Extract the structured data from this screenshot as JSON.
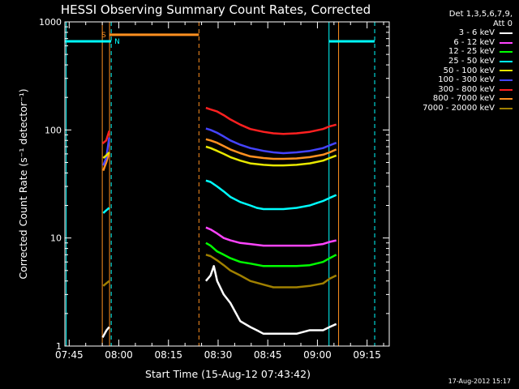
{
  "chart_data": {
    "type": "line",
    "title": "HESSI Observing Summary Count Rates, Corrected",
    "xlabel": "Start Time (15-Aug-12 07:43:42)",
    "ylabel": "Corrected Count Rate (s⁻¹ detector⁻¹)",
    "x_unit": "minutes after 07:43:42",
    "xlim": [
      0,
      98
    ],
    "ylim": [
      1,
      1000
    ],
    "yscale": "log",
    "x_ticks": [
      {
        "t": 1.3,
        "label": "07:45"
      },
      {
        "t": 16.3,
        "label": "08:00"
      },
      {
        "t": 31.3,
        "label": "08:15"
      },
      {
        "t": 46.3,
        "label": "08:30"
      },
      {
        "t": 61.3,
        "label": "08:45"
      },
      {
        "t": 76.3,
        "label": "09:00"
      },
      {
        "t": 91.3,
        "label": "09:15"
      }
    ],
    "y_ticks": [
      {
        "v": 1,
        "label": "1"
      },
      {
        "v": 10,
        "label": "10"
      },
      {
        "v": 100,
        "label": "100"
      },
      {
        "v": 1000,
        "label": "1000"
      }
    ],
    "legend_header": [
      "Det 1,3,5,6,7,9,",
      "Att 0"
    ],
    "series": [
      {
        "name": "3 - 6 keV",
        "color": "#ffffff",
        "segments": [
          {
            "t": [
              11.4,
              12.6,
              13.4
            ],
            "v": [
              1.2,
              1.4,
              1.5
            ]
          },
          {
            "t": [
              42.6,
              44,
              45,
              46,
              48,
              50,
              53,
              56,
              58,
              60,
              63,
              66,
              70,
              74,
              76,
              78,
              80,
              82
            ],
            "v": [
              4,
              4.5,
              5.5,
              4,
              3,
              2.5,
              1.7,
              1.5,
              1.4,
              1.3,
              1.3,
              1.3,
              1.3,
              1.4,
              1.4,
              1.4,
              1.5,
              1.6
            ]
          }
        ]
      },
      {
        "name": "6 - 12 keV",
        "color": "#ff44ff",
        "segments": [
          {
            "t": [
              42.6,
              44,
              46,
              48,
              50,
              53,
              56,
              60,
              63,
              66,
              70,
              74,
              78,
              80,
              82
            ],
            "v": [
              12.5,
              12,
              11,
              10,
              9.5,
              9,
              8.8,
              8.5,
              8.5,
              8.5,
              8.5,
              8.5,
              8.8,
              9.2,
              9.5
            ]
          }
        ]
      },
      {
        "name": "12 - 25 keV",
        "color": "#00ff00",
        "segments": [
          {
            "t": [
              42.6,
              44,
              46,
              48,
              50,
              53,
              56,
              60,
              63,
              66,
              70,
              74,
              78,
              80,
              82
            ],
            "v": [
              9,
              8.5,
              7.5,
              7,
              6.5,
              6,
              5.8,
              5.5,
              5.5,
              5.5,
              5.5,
              5.6,
              6,
              6.5,
              7
            ]
          }
        ]
      },
      {
        "name": "25 - 50 keV",
        "color": "#00ffff",
        "segments": [
          {
            "t": [
              11.6,
              12.5,
              13.4
            ],
            "v": [
              17,
              18,
              19
            ]
          },
          {
            "t": [
              42.6,
              44,
              46,
              48,
              50,
              53,
              56,
              58,
              60,
              63,
              66,
              70,
              74,
              76,
              78,
              80,
              82
            ],
            "v": [
              34,
              33,
              30,
              27,
              24,
              21.5,
              20,
              19,
              18.5,
              18.5,
              18.5,
              19,
              20,
              21,
              22,
              23.5,
              25
            ]
          }
        ]
      },
      {
        "name": "50 - 100 keV",
        "color": "#e8e800",
        "segments": [
          {
            "t": [
              11.6,
              12.5,
              13.4
            ],
            "v": [
              55,
              58,
              62
            ]
          },
          {
            "t": [
              42.6,
              44,
              46,
              48,
              50,
              53,
              56,
              60,
              63,
              66,
              70,
              74,
              78,
              80,
              82
            ],
            "v": [
              70,
              68,
              64,
              60,
              56,
              52,
              49,
              47.5,
              47,
              47,
              47.5,
              49,
              52,
              55,
              58
            ]
          }
        ]
      },
      {
        "name": "100 - 300 keV",
        "color": "#4444ff",
        "segments": [
          {
            "t": [
              11.6,
              12.5,
              13.4
            ],
            "v": [
              47,
              55,
              85
            ]
          },
          {
            "t": [
              42.6,
              44,
              46,
              48,
              50,
              53,
              56,
              60,
              63,
              66,
              70,
              74,
              78,
              80,
              82
            ],
            "v": [
              103,
              100,
              94,
              87,
              80,
              73,
              68,
              64,
              62,
              61,
              62,
              64,
              68,
              72,
              76
            ]
          }
        ]
      },
      {
        "name": "300 - 800 keV",
        "color": "#ff2020",
        "segments": [
          {
            "t": [
              11.4,
              12.5,
              13.4
            ],
            "v": [
              75,
              80,
              98
            ]
          },
          {
            "t": [
              42.6,
              44,
              46,
              48,
              50,
              53,
              56,
              60,
              63,
              66,
              70,
              74,
              78,
              80,
              82
            ],
            "v": [
              160,
              155,
              148,
              137,
              125,
              112,
              102,
              96,
              93,
              92,
              93,
              96,
              102,
              108,
              112
            ]
          }
        ]
      },
      {
        "name": "800 - 7000 keV",
        "color": "#ff9020",
        "segments": [
          {
            "t": [
              11.6,
              12.5,
              13.4
            ],
            "v": [
              42,
              50,
              62
            ]
          },
          {
            "t": [
              42.6,
              44,
              46,
              48,
              50,
              53,
              56,
              60,
              63,
              66,
              70,
              74,
              78,
              80,
              82
            ],
            "v": [
              82,
              80,
              76,
              71,
              66,
              61,
              57,
              55,
              54,
              54,
              54.5,
              56,
              59,
              62,
              66
            ]
          }
        ]
      },
      {
        "name": "7000 - 20000 keV",
        "color": "#a08000",
        "segments": [
          {
            "t": [
              11.6,
              12.5,
              13.4
            ],
            "v": [
              3.6,
              3.8,
              4
            ]
          },
          {
            "t": [
              42.6,
              44,
              46,
              48,
              50,
              53,
              56,
              60,
              63,
              66,
              70,
              74,
              78,
              80,
              82
            ],
            "v": [
              7,
              6.8,
              6.2,
              5.6,
              5,
              4.5,
              4,
              3.7,
              3.5,
              3.5,
              3.5,
              3.6,
              3.8,
              4.2,
              4.5
            ]
          }
        ]
      }
    ],
    "flags": [
      {
        "label": "S",
        "color": "#ff9020",
        "t_start": 13.5,
        "t_end": 40.5,
        "level": 760
      },
      {
        "label": "N",
        "color": "#00ffff",
        "t_start": 0,
        "t_end": 14.0,
        "level": 660
      },
      {
        "label": "",
        "color": "#00ffff",
        "t_start": 79.8,
        "t_end": 93.6,
        "level": 660
      }
    ],
    "markers": [
      {
        "t": 11.3,
        "color": "#ff9020",
        "style": "solid"
      },
      {
        "t": 13.5,
        "color": "#ff9020",
        "style": "solid"
      },
      {
        "t": 40.5,
        "color": "#ff9020",
        "style": "dashed"
      },
      {
        "t": 82.7,
        "color": "#ff9020",
        "style": "solid"
      },
      {
        "t": 14.0,
        "color": "#00ffff",
        "style": "dashed"
      },
      {
        "t": 79.8,
        "color": "#00ffff",
        "style": "solid"
      },
      {
        "t": 93.6,
        "color": "#00ffff",
        "style": "dashed"
      },
      {
        "t": 0.4,
        "color": "#00ffff",
        "style": "solid"
      }
    ]
  },
  "timestamp": "17-Aug-2012 15:17"
}
